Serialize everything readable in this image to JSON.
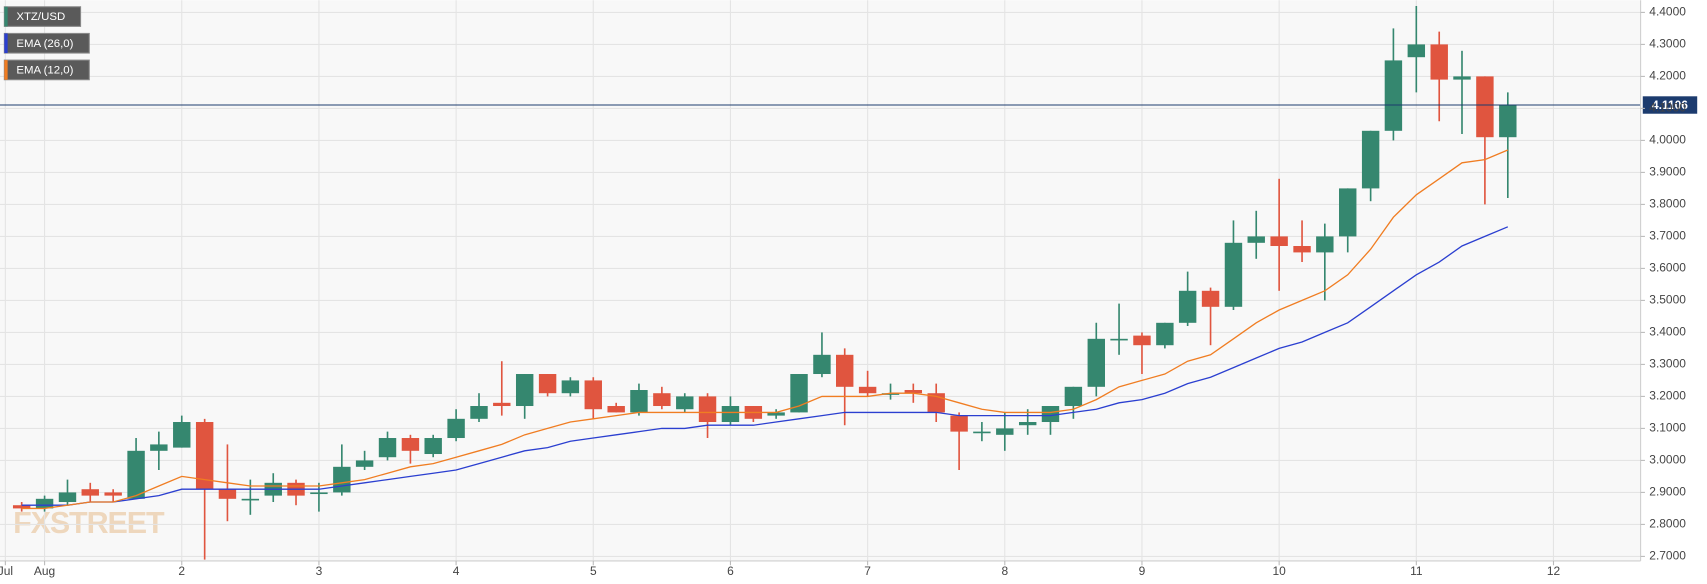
{
  "chart_data": {
    "type": "candlestick",
    "name": "XTZ/USD",
    "watermark": "FXSTREET",
    "up_color": "#35876f",
    "down_color": "#e0553f",
    "x": [
      0.833,
      1,
      1.167,
      1.333,
      1.5,
      1.667,
      1.833,
      2,
      2.167,
      2.333,
      2.5,
      2.667,
      2.833,
      3,
      3.167,
      3.333,
      3.5,
      3.667,
      3.833,
      4,
      4.167,
      4.333,
      4.5,
      4.667,
      4.833,
      5,
      5.167,
      5.333,
      5.5,
      5.667,
      5.833,
      6,
      6.167,
      6.333,
      6.5,
      6.667,
      6.833,
      7,
      7.167,
      7.333,
      7.5,
      7.667,
      7.833,
      8,
      8.167,
      8.333,
      8.5,
      8.667,
      8.833,
      9,
      9.167,
      9.333,
      9.5,
      9.667,
      9.833,
      10,
      10.167,
      10.333,
      10.5,
      10.667,
      10.833,
      11,
      11.167,
      11.333,
      11.5,
      11.667
    ],
    "open": [
      2.86,
      2.85,
      2.87,
      2.91,
      2.9,
      2.88,
      3.03,
      3.04,
      3.12,
      2.91,
      2.88,
      2.89,
      2.93,
      2.9,
      2.9,
      2.98,
      3.01,
      3.07,
      3.02,
      3.07,
      3.13,
      3.18,
      3.17,
      3.27,
      3.21,
      3.25,
      3.17,
      3.15,
      3.21,
      3.16,
      3.2,
      3.12,
      3.17,
      3.14,
      3.15,
      3.27,
      3.33,
      3.23,
      3.21,
      3.22,
      3.21,
      3.14,
      3.09,
      3.08,
      3.11,
      3.12,
      3.17,
      3.23,
      3.38,
      3.39,
      3.36,
      3.43,
      3.53,
      3.48,
      3.68,
      3.7,
      3.67,
      3.65,
      3.7,
      3.85,
      4.03,
      4.26,
      4.3,
      4.19,
      4.2,
      4.01
    ],
    "high": [
      2.87,
      2.89,
      2.94,
      2.93,
      2.91,
      3.07,
      3.09,
      3.14,
      3.13,
      3.05,
      2.94,
      2.96,
      2.94,
      2.93,
      3.05,
      3.03,
      3.09,
      3.08,
      3.08,
      3.16,
      3.21,
      3.31,
      3.27,
      3.27,
      3.26,
      3.26,
      3.18,
      3.24,
      3.23,
      3.21,
      3.21,
      3.2,
      3.17,
      3.16,
      3.27,
      3.4,
      3.35,
      3.28,
      3.24,
      3.24,
      3.24,
      3.15,
      3.12,
      3.15,
      3.16,
      3.17,
      3.23,
      3.43,
      3.49,
      3.4,
      3.43,
      3.59,
      3.54,
      3.75,
      3.78,
      3.88,
      3.75,
      3.74,
      3.85,
      4.03,
      4.35,
      4.42,
      4.34,
      4.28,
      4.2,
      4.15
    ],
    "low": [
      2.84,
      2.84,
      2.86,
      2.87,
      2.87,
      2.88,
      2.97,
      3.04,
      2.69,
      2.81,
      2.83,
      2.87,
      2.86,
      2.84,
      2.89,
      2.97,
      3.0,
      2.99,
      3.01,
      3.06,
      3.12,
      3.14,
      3.13,
      3.2,
      3.2,
      3.13,
      3.15,
      3.14,
      3.16,
      3.15,
      3.07,
      3.11,
      3.12,
      3.13,
      3.15,
      3.26,
      3.11,
      3.2,
      3.19,
      3.18,
      3.12,
      2.97,
      3.06,
      3.03,
      3.08,
      3.08,
      3.13,
      3.2,
      3.33,
      3.27,
      3.35,
      3.42,
      3.36,
      3.47,
      3.63,
      3.53,
      3.62,
      3.5,
      3.65,
      3.81,
      4.0,
      4.15,
      4.06,
      4.02,
      3.8,
      3.82
    ],
    "close": [
      2.85,
      2.88,
      2.9,
      2.89,
      2.89,
      3.03,
      3.05,
      3.12,
      2.91,
      2.88,
      2.88,
      2.93,
      2.89,
      2.9,
      2.98,
      3.0,
      3.07,
      3.03,
      3.07,
      3.13,
      3.17,
      3.17,
      3.27,
      3.21,
      3.25,
      3.16,
      3.15,
      3.22,
      3.17,
      3.2,
      3.12,
      3.17,
      3.13,
      3.15,
      3.27,
      3.33,
      3.23,
      3.21,
      3.21,
      3.21,
      3.15,
      3.09,
      3.09,
      3.1,
      3.12,
      3.17,
      3.23,
      3.38,
      3.38,
      3.36,
      3.43,
      3.53,
      3.48,
      3.68,
      3.7,
      3.67,
      3.65,
      3.7,
      3.85,
      4.03,
      4.25,
      4.3,
      4.19,
      4.2,
      4.01,
      4.11
    ],
    "series": [
      {
        "name": "EMA (26,0)",
        "color": "#2b3fd0",
        "values": [
          2.86,
          2.86,
          2.86,
          2.87,
          2.87,
          2.88,
          2.89,
          2.91,
          2.91,
          2.91,
          2.91,
          2.91,
          2.91,
          2.91,
          2.92,
          2.93,
          2.94,
          2.95,
          2.96,
          2.97,
          2.99,
          3.01,
          3.03,
          3.04,
          3.06,
          3.07,
          3.08,
          3.09,
          3.1,
          3.1,
          3.11,
          3.11,
          3.11,
          3.12,
          3.13,
          3.14,
          3.15,
          3.15,
          3.15,
          3.15,
          3.15,
          3.14,
          3.14,
          3.14,
          3.14,
          3.14,
          3.15,
          3.16,
          3.18,
          3.19,
          3.21,
          3.24,
          3.26,
          3.29,
          3.32,
          3.35,
          3.37,
          3.4,
          3.43,
          3.48,
          3.53,
          3.58,
          3.62,
          3.67,
          3.7,
          3.73
        ]
      },
      {
        "name": "EMA (12,0)",
        "color": "#f07d22",
        "values": [
          2.85,
          2.85,
          2.86,
          2.87,
          2.87,
          2.89,
          2.92,
          2.95,
          2.94,
          2.93,
          2.92,
          2.92,
          2.92,
          2.92,
          2.93,
          2.94,
          2.96,
          2.98,
          2.99,
          3.01,
          3.03,
          3.05,
          3.08,
          3.1,
          3.12,
          3.13,
          3.14,
          3.15,
          3.15,
          3.15,
          3.15,
          3.15,
          3.15,
          3.15,
          3.17,
          3.2,
          3.2,
          3.2,
          3.21,
          3.21,
          3.2,
          3.18,
          3.16,
          3.15,
          3.15,
          3.15,
          3.16,
          3.19,
          3.23,
          3.25,
          3.27,
          3.31,
          3.33,
          3.38,
          3.43,
          3.47,
          3.5,
          3.53,
          3.58,
          3.66,
          3.76,
          3.83,
          3.88,
          3.93,
          3.94,
          3.97
        ]
      }
    ],
    "last_price": 4.1106,
    "last_price_color": "#1c3b6e",
    "xlim": [
      0.675,
      12.635
    ],
    "xticks": [
      {
        "value": 0.714,
        "label": "Jul"
      },
      {
        "value": 1,
        "label": "Aug"
      },
      2,
      3,
      4,
      5,
      6,
      7,
      8,
      9,
      10,
      11,
      12
    ],
    "ylim": [
      2.686,
      4.438
    ],
    "yticks": [
      {
        "value": 2.7,
        "label": "2.7000"
      },
      {
        "value": 2.8,
        "label": "2.8000"
      },
      {
        "value": 2.9,
        "label": "2.9000"
      },
      {
        "value": 3.0,
        "label": "3.0000"
      },
      {
        "value": 3.1,
        "label": "3.1000"
      },
      {
        "value": 3.2,
        "label": "3.2000"
      },
      {
        "value": 3.3,
        "label": "3.3000"
      },
      {
        "value": 3.4,
        "label": "3.4000"
      },
      {
        "value": 3.5,
        "label": "3.5000"
      },
      {
        "value": 3.6,
        "label": "3.6000"
      },
      {
        "value": 3.7,
        "label": "3.7000"
      },
      {
        "value": 3.8,
        "label": "3.8000"
      },
      {
        "value": 3.9,
        "label": "3.9000"
      },
      {
        "value": 4.0,
        "label": "4.0000"
      },
      {
        "value": 4.1,
        "label": "4.1000"
      },
      {
        "value": 4.2,
        "label": "4.2000"
      },
      {
        "value": 4.3,
        "label": "4.3000"
      },
      {
        "value": 4.4,
        "label": "4.4000"
      }
    ],
    "grid": true
  }
}
